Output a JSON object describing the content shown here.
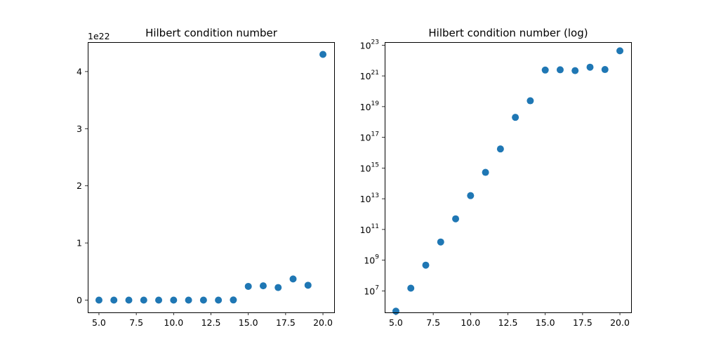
{
  "chart_data": [
    {
      "type": "scatter",
      "title": "Hilbert condition number",
      "xlabel": "",
      "ylabel": "",
      "yscale": "linear",
      "offset_label": "1e22",
      "color": "#1f77b4",
      "grid": false,
      "xlim": [
        4.25,
        20.75
      ],
      "ylim": [
        -2.15e+21,
        4.515e+22
      ],
      "x_ticks": [
        5.0,
        7.5,
        10.0,
        12.5,
        15.0,
        17.5,
        20.0
      ],
      "x_tick_labels": [
        "5.0",
        "7.5",
        "10.0",
        "12.5",
        "15.0",
        "17.5",
        "20.0"
      ],
      "y_ticks": [
        0,
        1e+22,
        2e+22,
        3e+22,
        4e+22
      ],
      "y_tick_labels": [
        "0",
        "1",
        "2",
        "3",
        "4"
      ],
      "x": [
        5,
        6,
        7,
        8,
        9,
        10,
        11,
        12,
        13,
        14,
        15,
        16,
        17,
        18,
        19,
        20
      ],
      "y": [
        477000.0,
        15000000.0,
        475000000.0,
        15300000000.0,
        493000000000.0,
        16000000000000.0,
        522000000000000.0,
        1.75e+16,
        2e+18,
        2.4e+19,
        2.4e+21,
        2.5e+21,
        2.2e+21,
        3.7e+21,
        2.6e+21,
        4.3e+22
      ]
    },
    {
      "type": "scatter",
      "title": "Hilbert condition number (log)",
      "xlabel": "",
      "ylabel": "",
      "yscale": "log",
      "color": "#1f77b4",
      "grid": false,
      "xlim": [
        4.25,
        20.75
      ],
      "ylim_log10": [
        5.6,
        23.2
      ],
      "x_ticks": [
        5.0,
        7.5,
        10.0,
        12.5,
        15.0,
        17.5,
        20.0
      ],
      "x_tick_labels": [
        "5.0",
        "7.5",
        "10.0",
        "12.5",
        "15.0",
        "17.5",
        "20.0"
      ],
      "y_ticks_log10": [
        7,
        9,
        11,
        13,
        15,
        17,
        19,
        21,
        23
      ],
      "y_tick_base": "10",
      "y_tick_exponents": [
        "7",
        "9",
        "11",
        "13",
        "15",
        "17",
        "19",
        "21",
        "23"
      ],
      "x": [
        5,
        6,
        7,
        8,
        9,
        10,
        11,
        12,
        13,
        14,
        15,
        16,
        17,
        18,
        19,
        20
      ],
      "y": [
        477000.0,
        15000000.0,
        475000000.0,
        15300000000.0,
        493000000000.0,
        16000000000000.0,
        522000000000000.0,
        1.75e+16,
        2e+18,
        2.4e+19,
        2.4e+21,
        2.5e+21,
        2.2e+21,
        3.7e+21,
        2.6e+21,
        4.3e+22
      ]
    }
  ]
}
